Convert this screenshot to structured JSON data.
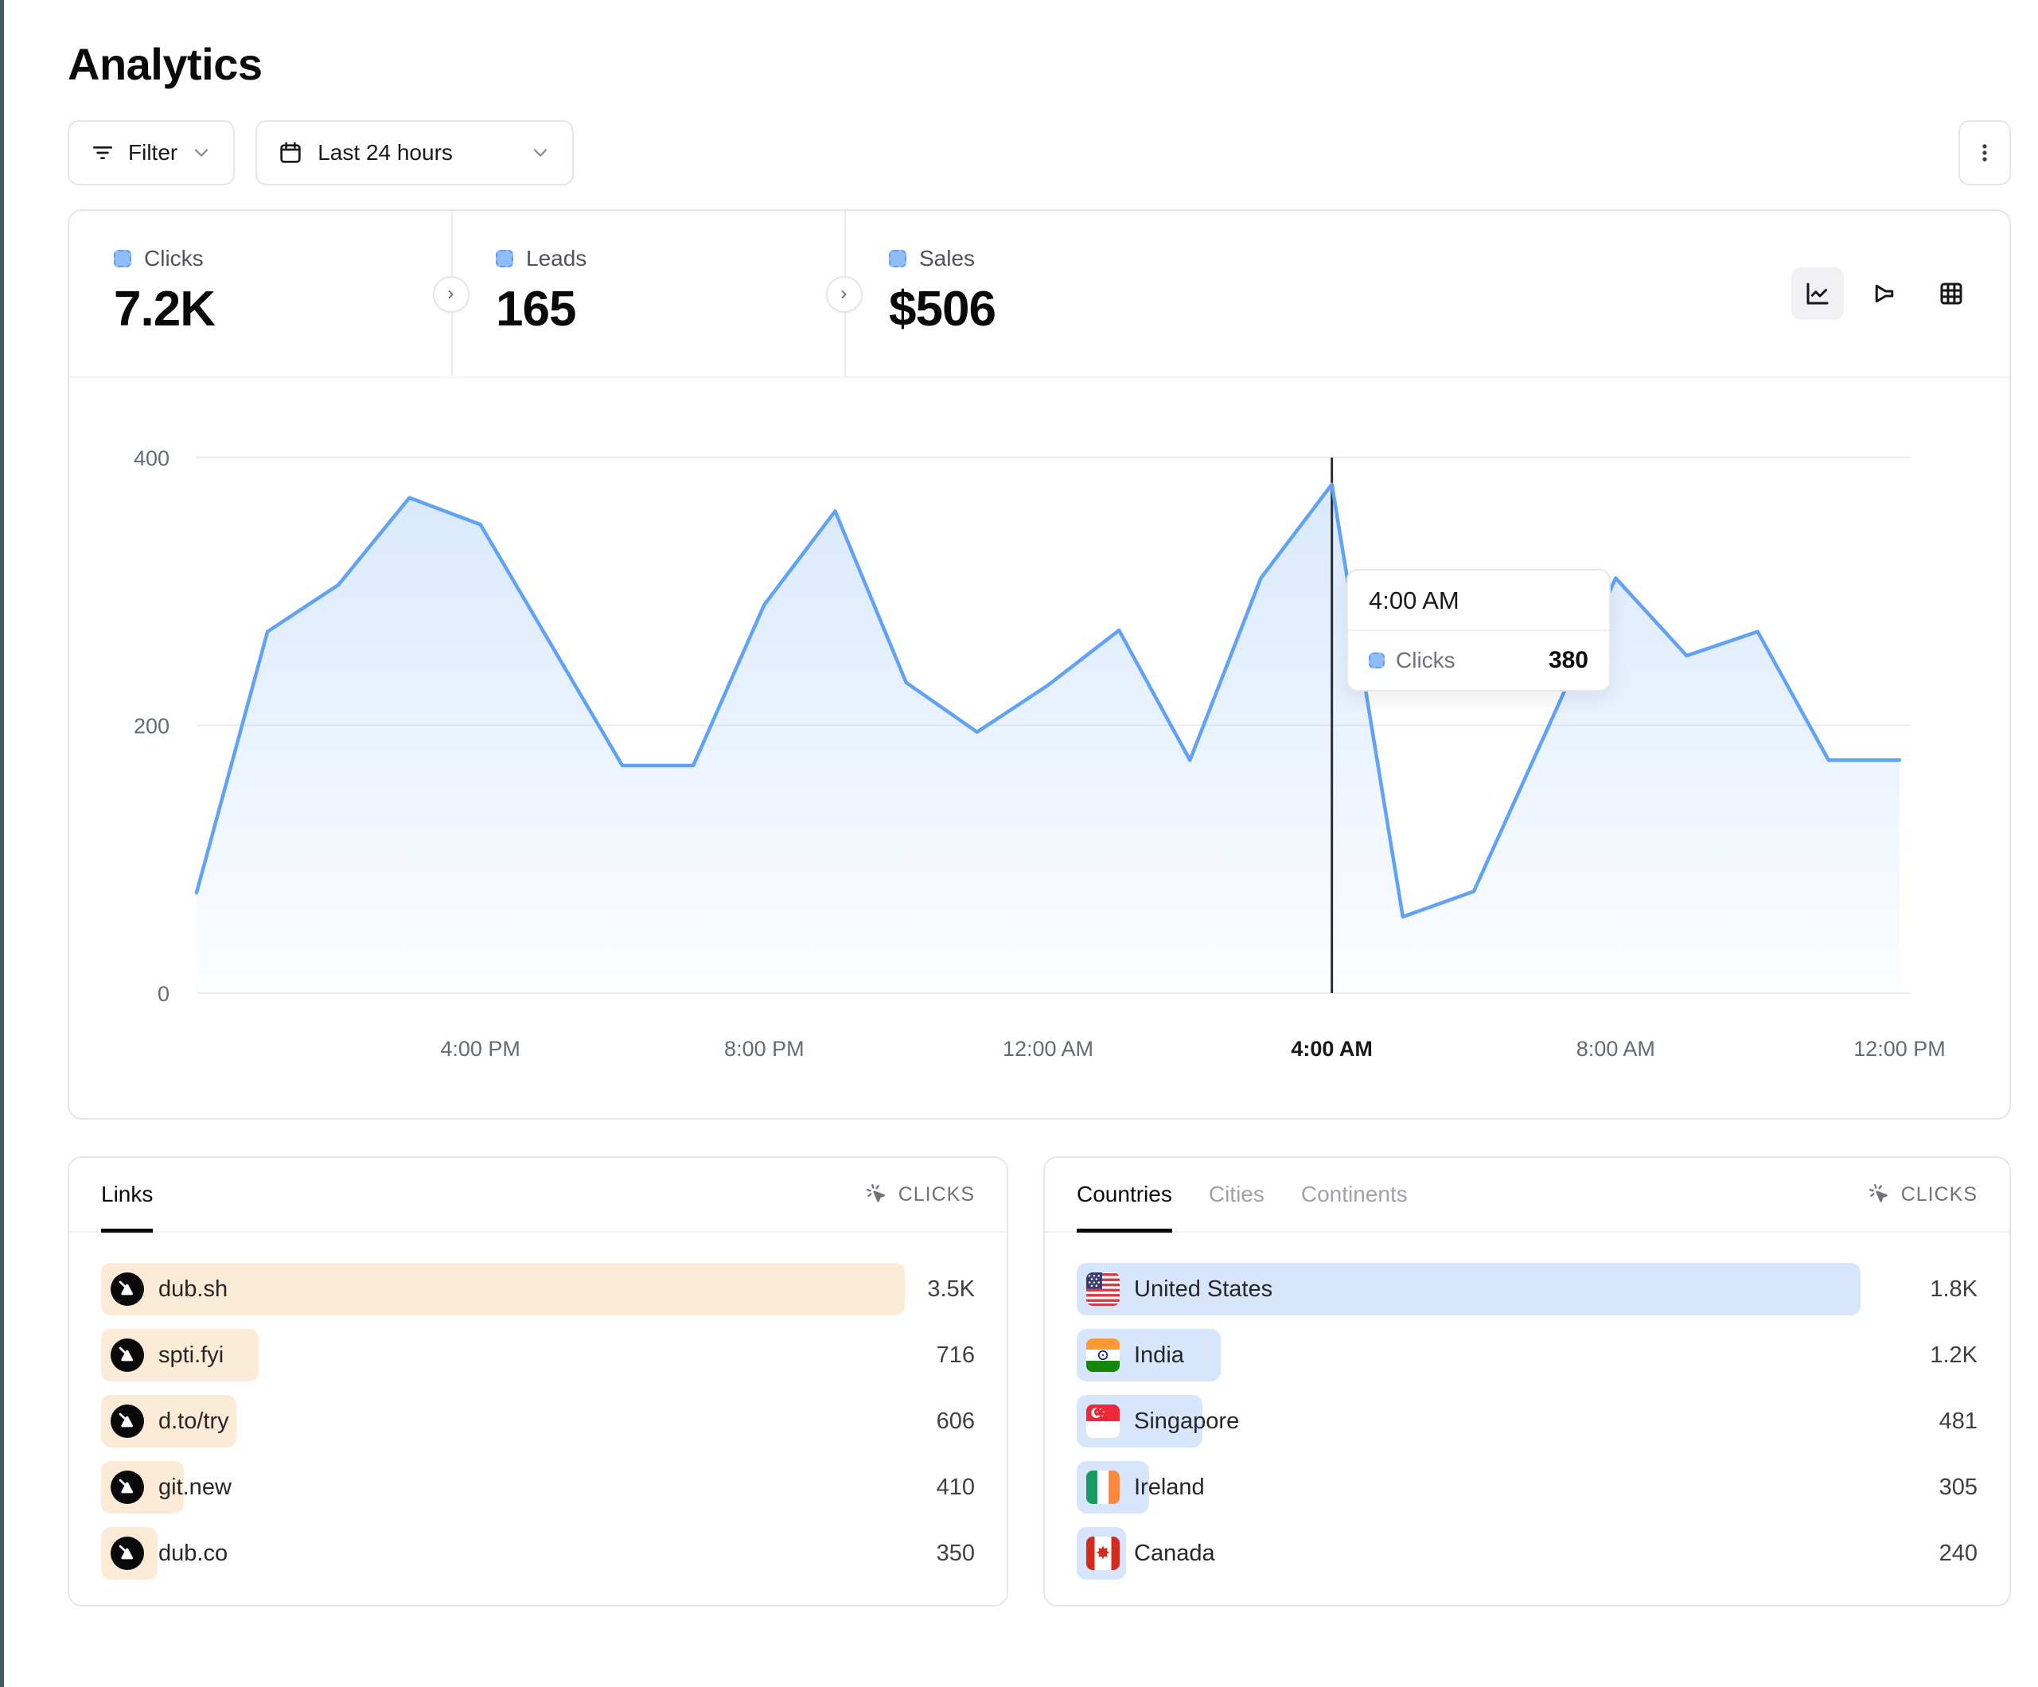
{
  "page": {
    "title": "Analytics"
  },
  "toolbar": {
    "filter_label": "Filter",
    "date_range_label": "Last 24 hours",
    "icons": [
      "list-filter-icon",
      "calendar-icon",
      "chevron-down-icon",
      "kebab-menu-icon"
    ]
  },
  "stats": {
    "tabs": [
      {
        "label": "Clicks",
        "value": "7.2K",
        "active": true
      },
      {
        "label": "Leads",
        "value": "165",
        "active": false
      },
      {
        "label": "Sales",
        "value": "$506",
        "active": false
      }
    ]
  },
  "chart_toggles": [
    "line-chart-icon",
    "funnel-chart-icon",
    "table-grid-icon"
  ],
  "chart_data": {
    "type": "area",
    "series_name": "Clicks",
    "x": [
      "12:00 PM",
      "1:00 PM",
      "2:00 PM",
      "3:00 PM",
      "4:00 PM",
      "5:00 PM",
      "6:00 PM",
      "7:00 PM",
      "8:00 PM",
      "9:00 PM",
      "10:00 PM",
      "11:00 PM",
      "12:00 AM",
      "1:00 AM",
      "2:00 AM",
      "3:00 AM",
      "4:00 AM",
      "5:00 AM",
      "6:00 AM",
      "7:00 AM",
      "8:00 AM",
      "9:00 AM",
      "10:00 AM",
      "11:00 AM",
      "12:00 PM"
    ],
    "values": [
      75,
      270,
      305,
      370,
      350,
      260,
      170,
      170,
      290,
      360,
      232,
      195,
      230,
      271,
      174,
      310,
      380,
      57,
      76,
      193,
      310,
      252,
      270,
      174,
      174
    ],
    "ylim": [
      0,
      400
    ],
    "yticks": [
      0,
      200,
      400
    ],
    "xticks": [
      {
        "label": "4:00 PM",
        "index": 4
      },
      {
        "label": "8:00 PM",
        "index": 8
      },
      {
        "label": "12:00 AM",
        "index": 12
      },
      {
        "label": "4:00 AM",
        "index": 16
      },
      {
        "label": "8:00 AM",
        "index": 20
      },
      {
        "label": "12:00 PM",
        "index": 24
      }
    ],
    "grid": true,
    "line_color": "#5fa2f7",
    "fill_color": "#5fa2f7",
    "highlight": {
      "index": 16,
      "x_label": "4:00 AM",
      "value": 380
    }
  },
  "tooltip": {
    "title": "4:00 AM",
    "series": "Clicks",
    "value": "380"
  },
  "links_panel": {
    "tabs": [
      {
        "label": "Links",
        "active": true
      }
    ],
    "metric_label": "CLICKS",
    "metric_icon": "cursor-click-icon",
    "bar_color": "#fcecd7",
    "rows": [
      {
        "label": "dub.sh",
        "value": "3.5K",
        "bar_percent": 92
      },
      {
        "label": "spti.fyi",
        "value": "716",
        "bar_percent": 18
      },
      {
        "label": "d.to/try",
        "value": "606",
        "bar_percent": 15.5
      },
      {
        "label": "git.new",
        "value": "410",
        "bar_percent": 9.5
      },
      {
        "label": "dub.co",
        "value": "350",
        "bar_percent": 6.5
      }
    ]
  },
  "countries_panel": {
    "tabs": [
      {
        "label": "Countries",
        "active": true
      },
      {
        "label": "Cities",
        "active": false
      },
      {
        "label": "Continents",
        "active": false
      }
    ],
    "metric_label": "CLICKS",
    "metric_icon": "cursor-click-icon",
    "bar_color": "#d7e6fc",
    "rows": [
      {
        "label": "United States",
        "value": "1.8K",
        "bar_percent": 87,
        "flag": "us"
      },
      {
        "label": "India",
        "value": "1.2K",
        "bar_percent": 16,
        "flag": "in"
      },
      {
        "label": "Singapore",
        "value": "481",
        "bar_percent": 14,
        "flag": "sg"
      },
      {
        "label": "Ireland",
        "value": "305",
        "bar_percent": 8,
        "flag": "ie"
      },
      {
        "label": "Canada",
        "value": "240",
        "bar_percent": 5.5,
        "flag": "ca"
      }
    ]
  },
  "colors": {
    "accent_blue": "#5fa2f7",
    "legend_square": "#8fbdf8",
    "links_bar": "#fcecd7",
    "countries_bar": "#d7e6fc",
    "border": "#e6e6e9",
    "text_dark": "#0a0a0a",
    "text_grey": "#71717a",
    "edge_strip": "#465a5d",
    "crosshair": "#2a2d33"
  }
}
